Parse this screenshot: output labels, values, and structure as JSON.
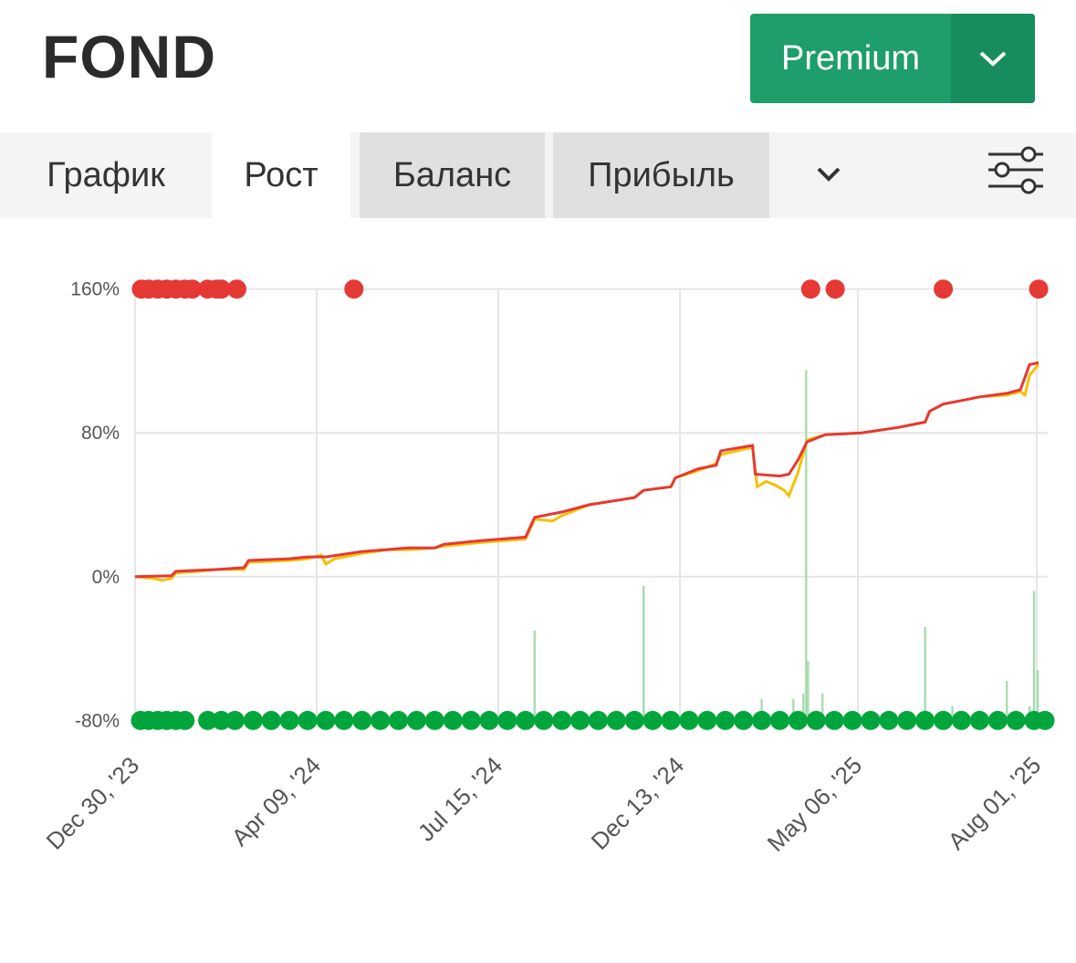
{
  "header": {
    "title": "FOND",
    "button": "Premium"
  },
  "tabs": [
    "График",
    "Рост",
    "Баланс",
    "Прибыль"
  ],
  "chart_data": {
    "type": "line",
    "xlim": [
      0,
      100.5
    ],
    "xticks": [
      {
        "value": 0,
        "label": "Dec 30, '23"
      },
      {
        "value": 20,
        "label": "Apr 09, '24"
      },
      {
        "value": 40,
        "label": "Jul 15, '24"
      },
      {
        "value": 60,
        "label": "Dec 13, '24"
      },
      {
        "value": 79.6,
        "label": "May 06, '25"
      },
      {
        "value": 99.3,
        "label": "Aug 01, '25"
      }
    ],
    "ylim": [
      -90,
      170
    ],
    "yticks": [
      {
        "value": 160,
        "label": "160%"
      },
      {
        "value": 80,
        "label": "80%"
      },
      {
        "value": 0,
        "label": "0%"
      },
      {
        "value": -80,
        "label": "-80%"
      }
    ],
    "grid": true,
    "series": [
      {
        "type": "bar",
        "color": "#a8dcb0",
        "x": [
          44,
          56,
          69,
          72.5,
          73.6,
          73.9,
          74.1,
          75.7,
          81,
          87,
          90,
          96,
          98.5,
          99,
          99.4
        ],
        "values": [
          -30,
          -5,
          -68,
          -68,
          -65,
          115,
          -47,
          -65,
          -78,
          -28,
          -72,
          -58,
          -72,
          -8,
          -52
        ]
      },
      {
        "type": "line",
        "color": "#f6c000",
        "x": [
          0,
          2,
          3,
          4,
          4.5,
          7,
          9,
          12,
          12.5,
          17,
          19,
          20.5,
          21,
          22,
          25,
          28,
          30,
          33,
          34,
          38,
          43,
          44,
          46,
          47,
          50,
          55,
          56,
          59,
          59.5,
          62,
          64,
          64.5,
          68,
          68.5,
          69.5,
          70.5,
          71.5,
          72,
          73,
          74,
          76,
          80,
          84,
          85,
          87,
          87.5,
          89,
          91,
          93,
          96,
          97.5,
          98,
          98.5,
          99.5
        ],
        "values": [
          0,
          -1,
          -2,
          -1,
          2,
          3,
          4,
          4,
          8,
          9,
          10,
          12,
          7,
          10,
          13,
          15,
          15,
          16,
          17,
          19,
          21,
          32,
          31,
          34,
          40,
          44,
          48,
          50,
          55,
          59,
          63,
          68,
          72,
          50,
          53,
          51,
          48,
          45,
          58,
          76,
          79,
          80,
          83,
          84,
          86,
          92,
          96,
          98,
          100,
          101,
          103,
          101,
          112,
          118
        ]
      },
      {
        "type": "line",
        "color": "#e53935",
        "x": [
          0,
          4,
          4.5,
          9,
          12,
          12.5,
          17,
          19,
          21,
          25,
          30,
          33,
          34,
          38,
          43,
          44,
          47,
          50,
          55,
          56,
          59,
          59.5,
          62,
          64,
          64.5,
          68,
          68.3,
          71,
          72,
          73,
          74,
          76,
          80,
          84,
          85,
          87,
          87.5,
          89,
          91,
          93,
          96,
          97.5,
          98.5,
          99.5
        ],
        "values": [
          0,
          0.5,
          3,
          4,
          5,
          9,
          10,
          11,
          11,
          14,
          16,
          16,
          18,
          20,
          22,
          33,
          36,
          40,
          44,
          48,
          50,
          55,
          60,
          62,
          70,
          73,
          57,
          56,
          57,
          65,
          75,
          79,
          80,
          83,
          84,
          86,
          92,
          96,
          98,
          100,
          102,
          104,
          118,
          119
        ]
      },
      {
        "type": "scatter",
        "color": "#e53935",
        "x": [
          0.7,
          1.5,
          2.5,
          3.5,
          4.5,
          5.5,
          6.3,
          8,
          9,
          9.5,
          11.2,
          24.1,
          74.4,
          77.1,
          89,
          99.5
        ],
        "values": [
          160,
          160,
          160,
          160,
          160,
          160,
          160,
          160,
          160,
          160,
          160,
          160,
          160,
          160,
          160,
          160
        ]
      },
      {
        "type": "scatter",
        "color": "#00a63c",
        "x": [
          0.6,
          1.5,
          2.5,
          3.5,
          4.5,
          5.5,
          8,
          9.5,
          11,
          13,
          15,
          17,
          19,
          21,
          23,
          25,
          27,
          29,
          31,
          33,
          35,
          37,
          39,
          41,
          43,
          45,
          47,
          49,
          51,
          53,
          55,
          57,
          59,
          61,
          63,
          65,
          67,
          69,
          71,
          73,
          75,
          77,
          79,
          81,
          83,
          85,
          87,
          89,
          91,
          93,
          95,
          97,
          99,
          100.2
        ],
        "values": [
          -80,
          -80,
          -80,
          -80,
          -80,
          -80,
          -80,
          -80,
          -80,
          -80,
          -80,
          -80,
          -80,
          -80,
          -80,
          -80,
          -80,
          -80,
          -80,
          -80,
          -80,
          -80,
          -80,
          -80,
          -80,
          -80,
          -80,
          -80,
          -80,
          -80,
          -80,
          -80,
          -80,
          -80,
          -80,
          -80,
          -80,
          -80,
          -80,
          -80,
          -80,
          -80,
          -80,
          -80,
          -80,
          -80,
          -80,
          -80,
          -80,
          -80,
          -80,
          -80,
          -80,
          -80
        ]
      }
    ]
  }
}
